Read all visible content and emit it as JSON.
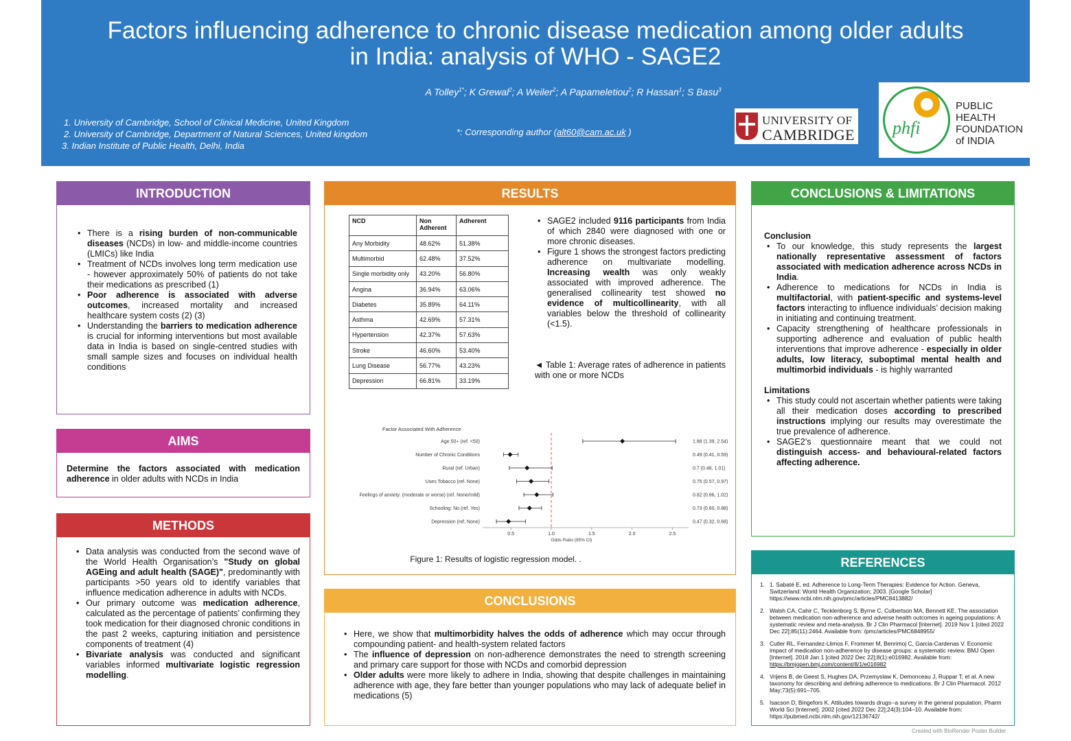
{
  "header": {
    "title_line1": "Factors influencing adherence to chronic disease medication among older adults",
    "title_line2": "in India: analysis of WHO - SAGE2",
    "authors": [
      {
        "name": "A Tolley",
        "sup": "1*"
      },
      {
        "name": "K Grewal",
        "sup": "2"
      },
      {
        "name": "A Weiler",
        "sup": "2"
      },
      {
        "name": "A Papameletiou",
        "sup": "2"
      },
      {
        "name": "R Hassan",
        "sup": "1"
      },
      {
        "name": "S Basu",
        "sup": "3"
      }
    ],
    "affiliations": [
      "1.  University of Cambridge, School of Clinical Medicine, United Kingdom",
      "2.  University of Cambridge, Department of Natural Sciences, United kingdom",
      "3. Indian Institute of Public Health, Delhi, India"
    ],
    "corresponding_prefix": "*: Corresponding author (",
    "corresponding_email": "alt60@cam.ac.uk",
    "corresponding_suffix": " )",
    "logo_cambridge_line1": "UNIVERSITY OF",
    "logo_cambridge_line2": "CAMBRIDGE",
    "logo_phfi_mark": "phfi",
    "logo_phfi_lines": [
      "PUBLIC",
      "HEALTH",
      "FOUNDATION",
      "of INDIA"
    ]
  },
  "introduction": {
    "heading": "INTRODUCTION",
    "items": [
      [
        {
          "t": "There is a "
        },
        {
          "b": "rising burden of non-communicable diseases"
        },
        {
          "t": " (NCDs) in low- and middle-income countries (LMICs) like India"
        }
      ],
      [
        {
          "t": "Treatment of NCDs involves long term medication use - however approximately 50% of patients do not take their medications as prescribed (1)"
        }
      ],
      [
        {
          "b": "Poor adherence is associated with adverse outcomes"
        },
        {
          "t": ", increased mortality and increased healthcare system costs (2) (3)"
        }
      ],
      [
        {
          "t": "Understanding the "
        },
        {
          "b": "barriers to medication adherence"
        },
        {
          "t": " is crucial for informing interventions but most available data in India is based on single-centred studies with small sample sizes and focuses on individual health conditions"
        }
      ]
    ]
  },
  "aims": {
    "heading": "AIMS",
    "text": [
      {
        "b": "Determine the factors associated with medication adherence"
      },
      {
        "t": " in older adults with NCDs in India"
      }
    ]
  },
  "methods": {
    "heading": "METHODS",
    "items": [
      [
        {
          "t": "Data analysis was conducted from the second wave of the World Health Organisation’s "
        },
        {
          "b": "\"Study on global AGEing and adult health (SAGE)\""
        },
        {
          "t": ", predominantly with participants >50 years old to identify variables that influence medication adherence in adults with NCDs."
        }
      ],
      [
        {
          "t": "Our primary outcome was "
        },
        {
          "b": "medication adherence"
        },
        {
          "t": ", calculated as the percentage of patients’ confirming they took medication for their diagnosed chronic conditions in the past 2 weeks, capturing initiation and persistence components of treatment (4)"
        }
      ],
      [
        {
          "b": "Bivariate analysis"
        },
        {
          "t": " was conducted and significant variables informed "
        },
        {
          "b": "multivariate logistic regression modelling"
        },
        {
          "t": "."
        }
      ]
    ]
  },
  "results": {
    "heading": "RESULTS",
    "table": {
      "headers": [
        "NCD",
        "Non Adherent",
        "Adherent"
      ],
      "rows": [
        [
          "Any Morbidity",
          "48.62%",
          "51.38%"
        ],
        [
          "Multimorbid",
          "62.48%",
          "37.52%"
        ],
        [
          "Single morbidity only",
          "43.20%",
          "56.80%"
        ],
        [
          "Angina",
          "36.94%",
          "63.06%"
        ],
        [
          "Diabetes",
          "35.89%",
          "64.11%"
        ],
        [
          "Asthma",
          "42.69%",
          "57.31%"
        ],
        [
          "Hypertension",
          "42.37%",
          "57.63%"
        ],
        [
          "Stroke",
          "46.60%",
          "53.40%"
        ],
        [
          "Lung Disease",
          "56.77%",
          "43.23%"
        ],
        [
          "Depression",
          "66.81%",
          "33.19%"
        ]
      ]
    },
    "items": [
      [
        {
          "t": "SAGE2 included "
        },
        {
          "b": "9116 participants"
        },
        {
          "t": " from India of which 2840 were diagnosed with one or more chronic diseases."
        }
      ],
      [
        {
          "t": "Figure 1 shows the strongest factors predicting adherence on multivariate modelling. "
        },
        {
          "b": "Increasing wealth"
        },
        {
          "t": " was only weakly associated with improved adherence. The generalised collinearity test showed "
        },
        {
          "b": "no evidence of multicollinearity"
        },
        {
          "t": ", with all variables below the threshold of collinearity (<1.5)."
        }
      ]
    ],
    "table_caption": "◄ Table 1: Average rates of adherence in patients with  one or more NCDs",
    "figure_caption": "Figure 1: Results of logistic  regression model. ."
  },
  "chart_data": {
    "type": "scatter",
    "subtype": "forest-plot",
    "title": "Factor Associated With Adherence",
    "xlabel": "Odds Ratio (95% CI)",
    "xlim": [
      0.15,
      2.7
    ],
    "xticks": [
      0.5,
      1.0,
      1.5,
      2.0,
      2.5
    ],
    "xtick_labels": [
      "0.5",
      "1.0",
      "1.5",
      "2.0",
      "2.5"
    ],
    "reference_line": 1.0,
    "reference_line_color": "#e8533f",
    "factors": [
      {
        "label": "Age 50+ (ref. <50)",
        "or": 1.88,
        "lo": 1.39,
        "hi": 2.54,
        "text": "1.88 (1.39, 2.54)"
      },
      {
        "label": "Number of Chronic Conditions",
        "or": 0.49,
        "lo": 0.41,
        "hi": 0.59,
        "text": "0.49 (0.41, 0.59)"
      },
      {
        "label": "Rural (ref. Urban)",
        "or": 0.7,
        "lo": 0.48,
        "hi": 1.01,
        "text": "0.7 (0.48, 1.01)"
      },
      {
        "label": "Uses Tobacco (ref. None)",
        "or": 0.75,
        "lo": 0.57,
        "hi": 0.97,
        "text": "0.75 (0.57, 0.97)"
      },
      {
        "label": "Feelings of anxiety: (moderate or worse) (ref. None/mild)",
        "or": 0.82,
        "lo": 0.66,
        "hi": 1.02,
        "text": "0.82 (0.66, 1.02)"
      },
      {
        "label": "Schooling: No (ref. Yes)",
        "or": 0.73,
        "lo": 0.6,
        "hi": 0.88,
        "text": "0.73 (0.60, 0.88)"
      },
      {
        "label": "Depression (ref. None)",
        "or": 0.47,
        "lo": 0.32,
        "hi": 0.68,
        "text": "0.47 (0.32, 0.68)"
      }
    ]
  },
  "conclusions": {
    "heading": "CONCLUSIONS",
    "items": [
      [
        {
          "t": "Here, we show that "
        },
        {
          "b": "multimorbidity halves the odds of adherence"
        },
        {
          "t": " which may occur through compounding patient- and health-system related factors"
        }
      ],
      [
        {
          "t": "The "
        },
        {
          "b": "influence of depression"
        },
        {
          "t": " on non-adherence demonstrates the need to strength screening and primary care support for those with NCDs and comorbid depression"
        }
      ],
      [
        {
          "b": "Older adults"
        },
        {
          "t": " were more likely to adhere in India, showing that despite challenges in maintaining adherence with age, they fare better than younger populations who may  lack of adequate belief in medications (5)"
        }
      ]
    ]
  },
  "conclusions_limitations": {
    "heading": "CONCLUSIONS & LIMITATIONS",
    "conclusion_title": "Conclusion",
    "conclusion_items": [
      [
        {
          "t": "To our knowledge, this study represents the "
        },
        {
          "b": "largest nationally representative assessment of factors associated with medication adherence across NCDs in India"
        },
        {
          "t": "."
        }
      ],
      [
        {
          "t": "Adherence to medications for NCDs in India is "
        },
        {
          "b": "multifactorial"
        },
        {
          "t": ", with "
        },
        {
          "b": "patient-specific and systems-level factors"
        },
        {
          "t": " interacting to influence individuals’ decision making in initiating and continuing treatment."
        }
      ],
      [
        {
          "t": "Capacity strengthening of healthcare professionals in supporting adherence and evaluation of public health interventions that improve adherence - "
        },
        {
          "b": "especially in older adults, low literacy, suboptimal mental health and multimorbid individuals"
        },
        {
          "t": " - is highly warranted"
        }
      ]
    ],
    "limitations_title": "Limitations",
    "limitation_items": [
      [
        {
          "t": " This study could not ascertain whether patients were taking all their medication doses "
        },
        {
          "b": "according to prescribed instructions"
        },
        {
          "t": " implying our results may overestimate the true prevalence of adherence."
        }
      ],
      [
        {
          "t": "SAGE2’s questionnaire meant that we could not "
        },
        {
          "b": "distinguish access- and behavioural-related factors affecting adherence."
        }
      ]
    ]
  },
  "references": {
    "heading": "REFERENCES",
    "items": [
      {
        "n": "1.",
        "parts": [
          {
            "t": "1. Sabaté E, ed. Adherence to Long-Term Therapies: Evidence for Action. Geneva, Switzerland: World Health Organization; 2003. [Google Scholar] https://www.ncbi.nlm.nih.gov/pmc/articles/PMC8413882/"
          }
        ]
      },
      {
        "n": "2.",
        "parts": [
          {
            "t": "Walsh CA, Cahir C, Tecklenborg S, Byrne C, Culbertson MA, Bennett KE. The association between medication non-adherence and adverse health outcomes in ageing populations: A systematic review and meta-analysis. Br J Clin Pharmacol [Internet]. 2019 Nov 1 [cited 2022 Dec 22];85(11):2464. Available from: /pmc/articles/PMC6848955/"
          }
        ]
      },
      {
        "n": "3.",
        "parts": [
          {
            "t": "Cutler RL, Fernandez-Llimos F, Frommer M, Benrimoj C, Garcia-Cardenas V. Economic impact of medication non-adherence by disease groups: a systematic review. BMJ Open [Internet]. 2018 Jan 1 [cited 2022 Dec 22];8(1):e016982. Available from: "
          },
          {
            "u": "https://bmjopen.bmj.com/content/8/1/e016982"
          }
        ]
      },
      {
        "n": "4.",
        "parts": [
          {
            "t": "Vrijens B, de Geest S, Hughes DA, Przemyslaw K, Demonceau J, Ruppar T, et al. A new taxonomy for describing and defining adherence to medications. Br J Clin Pharmacol. 2012 May;73(5):691–705."
          }
        ]
      },
      {
        "n": "5.",
        "parts": [
          {
            "t": "Isacson D, Bingefors K. Attitudes towards drugs--a survey in the general population. Pharm World Sci [Internet]. 2002 [cited 2022 Dec 22];24(3):104–10. Available from: https://pubmed.ncbi.nlm.nih.gov/12136742/"
          }
        ]
      }
    ]
  },
  "footer": {
    "credit": "Created with BioRender Poster Builder"
  }
}
